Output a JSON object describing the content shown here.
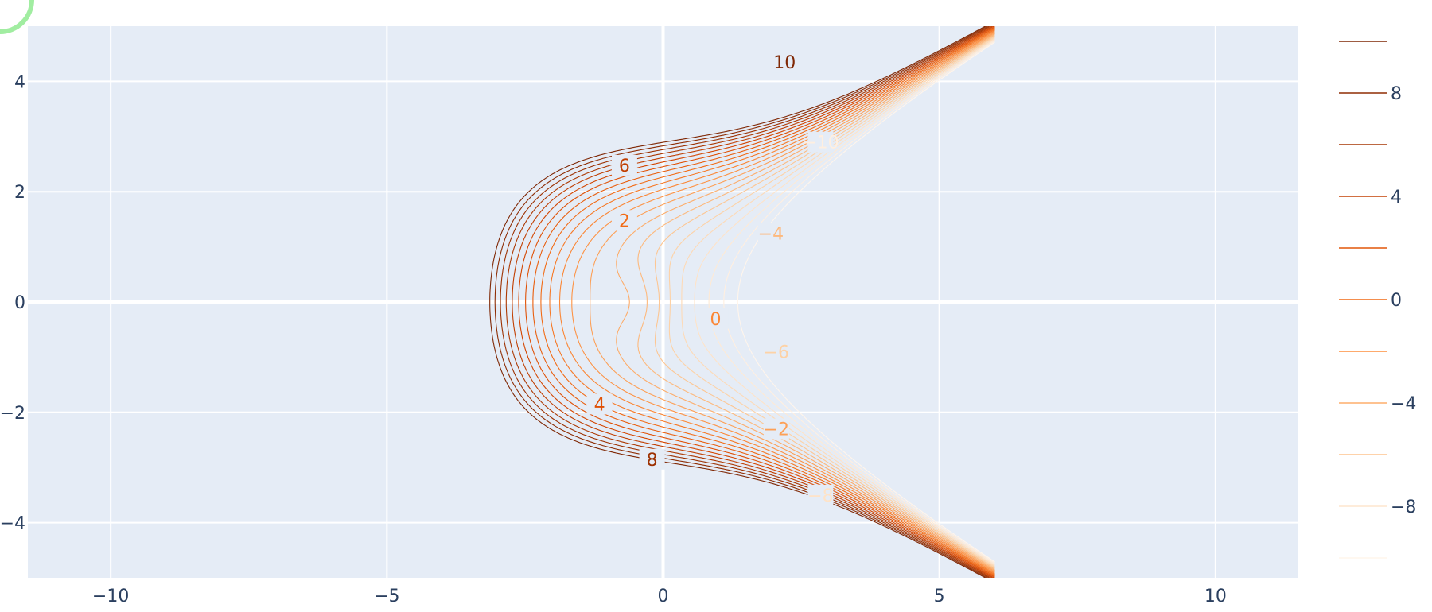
{
  "chart_data": {
    "type": "contour",
    "title": "",
    "xlabel": "",
    "ylabel": "",
    "xlim": [
      -11.5,
      11.5
    ],
    "ylim": [
      -5,
      5
    ],
    "x_ticks": [
      -10,
      -5,
      0,
      5,
      10
    ],
    "x_tick_labels": [
      "−10",
      "−5",
      "0",
      "5",
      "10"
    ],
    "y_ticks": [
      -4,
      -2,
      0,
      2,
      4
    ],
    "y_tick_labels": [
      "−4",
      "−2",
      "0",
      "2",
      "4"
    ],
    "grid": true,
    "colorscale": "Oranges (reversed)",
    "plot_background": "#e5ecf6",
    "grid_color": "#ffffff",
    "contour_levels": [
      -11,
      -10,
      -9,
      -8,
      -7,
      -6,
      -5,
      -4,
      -3,
      -2,
      -1,
      0,
      1,
      2,
      3,
      4,
      5,
      6,
      7,
      8,
      9,
      10
    ],
    "contour_labels": [
      {
        "text": "10",
        "x": 2.2,
        "y": 4.35
      },
      {
        "text": "−10",
        "x": 2.85,
        "y": 2.9
      },
      {
        "text": "6",
        "x": -0.7,
        "y": 2.48
      },
      {
        "text": "2",
        "x": -0.7,
        "y": 1.48
      },
      {
        "text": "−4",
        "x": 1.95,
        "y": 1.25
      },
      {
        "text": "0",
        "x": 0.95,
        "y": -0.3
      },
      {
        "text": "−6",
        "x": 2.05,
        "y": -0.9
      },
      {
        "text": "4",
        "x": -1.15,
        "y": -1.85
      },
      {
        "text": "−2",
        "x": 2.05,
        "y": -2.3
      },
      {
        "text": "8",
        "x": -0.2,
        "y": -2.85
      },
      {
        "text": "−8",
        "x": 2.85,
        "y": -3.5
      }
    ],
    "legend": {
      "placement": "right",
      "entries": [
        {
          "label": "",
          "color": "#7f2704"
        },
        {
          "label": "8",
          "color": "#8f2d04"
        },
        {
          "label": "",
          "color": "#a63603"
        },
        {
          "label": "4",
          "color": "#c44103"
        },
        {
          "label": "",
          "color": "#e25609"
        },
        {
          "label": "0",
          "color": "#f16913"
        },
        {
          "label": "",
          "color": "#fd8d3c"
        },
        {
          "label": "−4",
          "color": "#fdae6b"
        },
        {
          "label": "",
          "color": "#fdc38d"
        },
        {
          "label": "−8",
          "color": "#fee6ce"
        },
        {
          "label": "",
          "color": "#fff5eb"
        }
      ]
    }
  }
}
